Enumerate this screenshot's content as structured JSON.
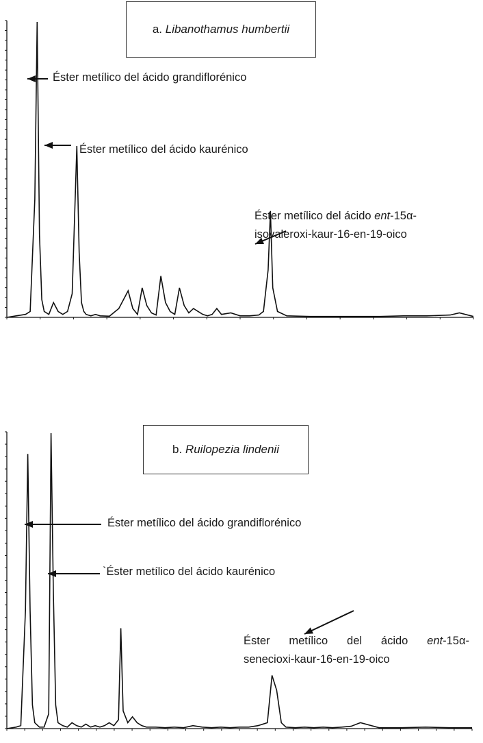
{
  "chart_data": [
    {
      "type": "line",
      "panel": "a",
      "title_label": "a.",
      "title_species": "Libanothamus humbertii",
      "xlabel": "",
      "ylabel": "",
      "xlim": [
        0,
        100
      ],
      "ylim": [
        0,
        100
      ],
      "grid": false,
      "series": [
        {
          "x": [
            0,
            2,
            4,
            5,
            6,
            6.5,
            7,
            7.5,
            8,
            9,
            10,
            11,
            12,
            13,
            14,
            15,
            15.5,
            16,
            16.5,
            17,
            18,
            19,
            20,
            22,
            24,
            26,
            27,
            28,
            29,
            30,
            31,
            32,
            33,
            34,
            35,
            36,
            37,
            38,
            39,
            40,
            41,
            42,
            43,
            44,
            45,
            46,
            48,
            50,
            52,
            54,
            55,
            56,
            56.5,
            57,
            58,
            60,
            65,
            70,
            75,
            80,
            85,
            90,
            95,
            97,
            100
          ],
          "y": [
            0,
            0.5,
            1,
            2,
            40,
            100,
            28,
            6,
            2,
            1,
            5,
            2,
            1,
            2,
            8,
            58,
            22,
            5,
            2,
            1,
            0.5,
            1,
            0.5,
            0.4,
            3,
            9,
            3,
            1,
            10,
            4,
            1.5,
            0.8,
            14,
            5,
            2,
            1,
            10,
            4,
            1.5,
            3,
            2,
            1,
            0.5,
            1,
            3,
            1,
            1.5,
            0.5,
            0.5,
            0.8,
            2,
            16,
            36,
            10,
            2,
            0.5,
            0.3,
            0.3,
            0.3,
            0.3,
            0.5,
            0.5,
            0.8,
            1.5,
            0.3
          ]
        }
      ],
      "annotations": [
        {
          "line1": "Éster metílico del ácido grandiflorénico",
          "x": 6.5,
          "y": 80
        },
        {
          "line1": "Éster metílico del ácido kaurénico",
          "x": 15.5,
          "y": 58
        },
        {
          "line1_a": "Éster metílico del ácido ",
          "line1_it": "ent",
          "line1_b": "-15α-",
          "line2": "isovaleroxi-kaur-16-en-19-oico",
          "x": 56.5,
          "y": 21
        }
      ]
    },
    {
      "type": "line",
      "panel": "b",
      "title_label": "b.",
      "title_species": "Ruilopezia lindenii",
      "xlabel": "",
      "ylabel": "",
      "xlim": [
        0,
        100
      ],
      "ylim": [
        0,
        100
      ],
      "grid": false,
      "series": [
        {
          "x": [
            0,
            2,
            3,
            4,
            4.5,
            5,
            5.5,
            6,
            7,
            8,
            9,
            9.5,
            10,
            10.5,
            11,
            12,
            13,
            14,
            15,
            16,
            17,
            18,
            19,
            20,
            21,
            22,
            23,
            24,
            24.5,
            25,
            26,
            27,
            28,
            29,
            30,
            32,
            34,
            36,
            38,
            40,
            42,
            44,
            46,
            48,
            50,
            52,
            54,
            56,
            57,
            58,
            59,
            60,
            62,
            64,
            66,
            68,
            70,
            72,
            74,
            76,
            80,
            85,
            90,
            95,
            100
          ],
          "y": [
            0,
            0.5,
            1,
            40,
            93,
            40,
            8,
            2,
            0.5,
            0.5,
            5,
            100,
            46,
            8,
            2,
            1,
            0.5,
            2,
            1,
            0.5,
            1.5,
            0.5,
            1,
            0.5,
            1,
            2,
            1,
            3,
            34,
            6,
            2,
            4,
            2,
            1,
            0.5,
            0.5,
            0.3,
            0.5,
            0.3,
            1,
            0.5,
            0.3,
            0.5,
            0.3,
            0.5,
            0.5,
            1,
            2,
            18,
            13,
            2,
            0.5,
            0.3,
            0.5,
            0.3,
            0.5,
            0.3,
            0.5,
            0.8,
            2,
            0.3,
            0.3,
            0.5,
            0.3,
            0.3
          ]
        }
      ],
      "annotations": [
        {
          "line1": "Éster metílico del ácido grandiflorénico",
          "x": 4.5,
          "y": 78
        },
        {
          "line1": "`Éster metílico del ácido kaurénico",
          "x": 9.5,
          "y": 58
        },
        {
          "line1_a": "Éster",
          "line1_b": "metílico",
          "line1_c": "del",
          "line1_d": "ácido",
          "line1_it": "ent",
          "line1_e": "-15α-",
          "line2": "senecioxi-kaur-16-en-19-oico",
          "x": 61,
          "y": 18
        }
      ]
    }
  ]
}
